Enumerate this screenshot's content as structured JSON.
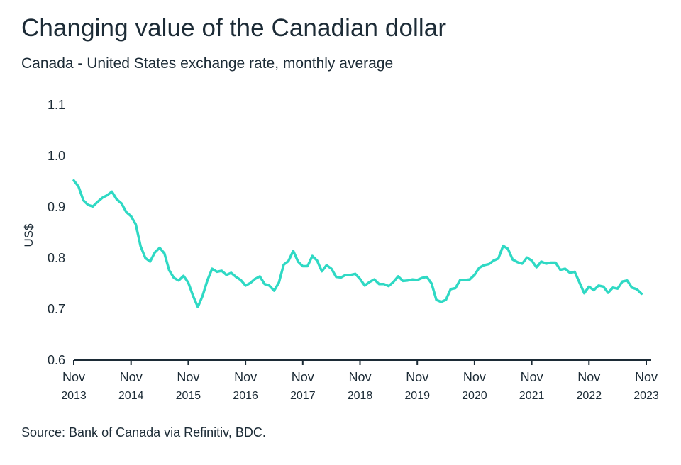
{
  "header": {
    "title": "Changing value of the Canadian dollar",
    "subtitle": "Canada - United States exchange rate, monthly average"
  },
  "footer": {
    "source": "Source: Bank of Canada via Refinitiv, BDC."
  },
  "colors": {
    "line": "#2fd9c4",
    "axis": "#1c2b36",
    "text": "#1c2b36"
  },
  "chart_data": {
    "type": "line",
    "title": "Changing value of the Canadian dollar",
    "subtitle": "Canada - United States exchange rate, monthly average",
    "ylabel": "US$",
    "xlabel": "",
    "ylim": [
      0.6,
      1.1
    ],
    "yticks": [
      "0.6",
      "0.7",
      "0.8",
      "0.9",
      "1.0",
      "1.1"
    ],
    "xticks": [
      {
        "label": "Nov",
        "year": "2013",
        "date": "2013-11"
      },
      {
        "label": "Nov",
        "year": "2014",
        "date": "2014-11"
      },
      {
        "label": "Nov",
        "year": "2015",
        "date": "2015-11"
      },
      {
        "label": "Nov",
        "year": "2016",
        "date": "2016-11"
      },
      {
        "label": "Nov",
        "year": "2017",
        "date": "2017-11"
      },
      {
        "label": "Nov",
        "year": "2018",
        "date": "2018-11"
      },
      {
        "label": "Nov",
        "year": "2019",
        "date": "2019-11"
      },
      {
        "label": "Nov",
        "year": "2020",
        "date": "2020-11"
      },
      {
        "label": "Nov",
        "year": "2021",
        "date": "2021-11"
      },
      {
        "label": "Nov",
        "year": "2022",
        "date": "2022-11"
      },
      {
        "label": "Nov",
        "year": "2023",
        "date": "2023-11"
      }
    ],
    "grid": false,
    "series": [
      {
        "start": "2013-11",
        "values": [
          0.952,
          0.94,
          0.913,
          0.904,
          0.901,
          0.91,
          0.918,
          0.923,
          0.93,
          0.915,
          0.907,
          0.89,
          0.882,
          0.866,
          0.823,
          0.8,
          0.793,
          0.811,
          0.82,
          0.809,
          0.776,
          0.761,
          0.756,
          0.765,
          0.752,
          0.726,
          0.704,
          0.726,
          0.756,
          0.779,
          0.773,
          0.775,
          0.767,
          0.771,
          0.763,
          0.757,
          0.746,
          0.751,
          0.759,
          0.764,
          0.749,
          0.746,
          0.736,
          0.752,
          0.787,
          0.794,
          0.814,
          0.793,
          0.784,
          0.784,
          0.804,
          0.795,
          0.774,
          0.786,
          0.779,
          0.763,
          0.762,
          0.767,
          0.767,
          0.769,
          0.759,
          0.746,
          0.753,
          0.758,
          0.749,
          0.749,
          0.745,
          0.753,
          0.764,
          0.755,
          0.756,
          0.758,
          0.757,
          0.761,
          0.763,
          0.75,
          0.718,
          0.714,
          0.718,
          0.739,
          0.741,
          0.757,
          0.757,
          0.758,
          0.767,
          0.781,
          0.786,
          0.788,
          0.795,
          0.799,
          0.824,
          0.818,
          0.797,
          0.792,
          0.789,
          0.801,
          0.795,
          0.782,
          0.793,
          0.789,
          0.791,
          0.791,
          0.777,
          0.779,
          0.771,
          0.773,
          0.752,
          0.731,
          0.744,
          0.737,
          0.746,
          0.744,
          0.732,
          0.742,
          0.74,
          0.754,
          0.756,
          0.742,
          0.739,
          0.73
        ]
      }
    ]
  }
}
